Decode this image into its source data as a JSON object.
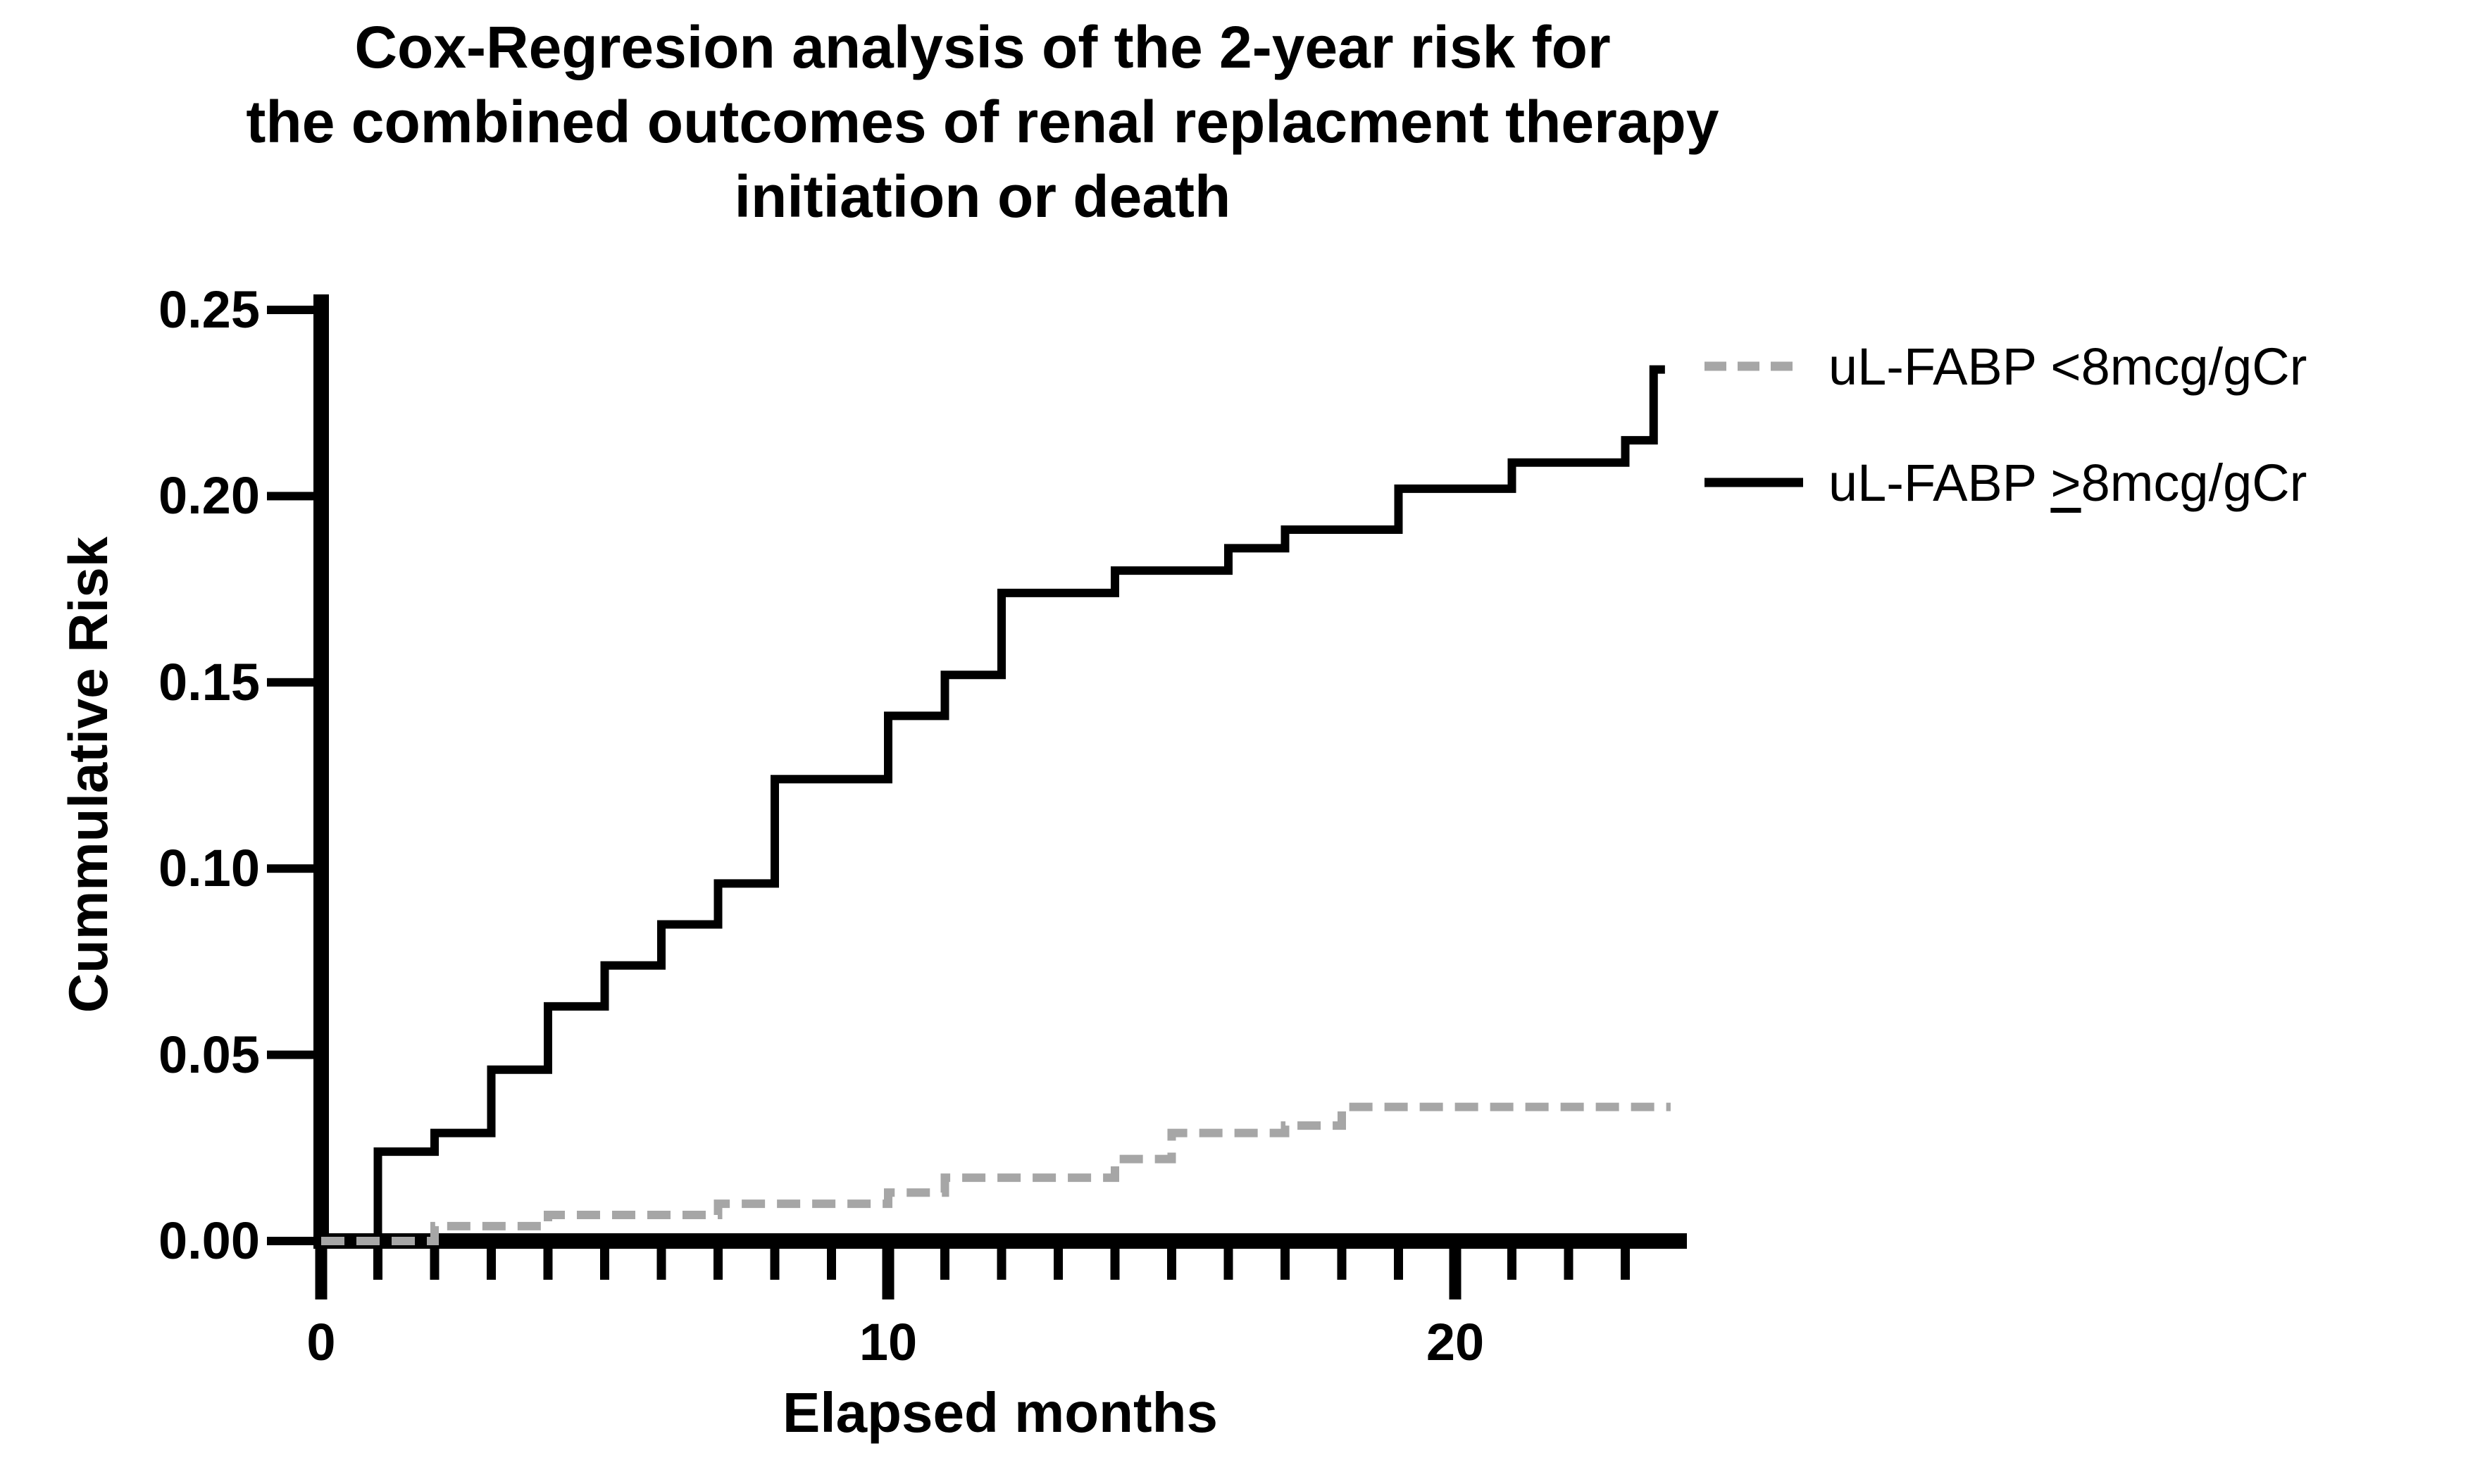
{
  "title": {
    "lines": [
      "Cox-Regresion analysis of the 2-year risk for",
      "the combined outcomes of renal replacment therapy",
      "initiation or death"
    ]
  },
  "y_axis": {
    "label": "Cummulative Risk",
    "range": [
      0,
      0.25
    ],
    "ticks": [
      {
        "v": 0.0,
        "label": "0.00"
      },
      {
        "v": 0.05,
        "label": "0.05"
      },
      {
        "v": 0.1,
        "label": "0.10"
      },
      {
        "v": 0.15,
        "label": "0.15"
      },
      {
        "v": 0.2,
        "label": "0.20"
      },
      {
        "v": 0.25,
        "label": "0.25"
      }
    ]
  },
  "x_axis": {
    "label": "Elapsed months",
    "range": [
      0,
      24
    ],
    "major_ticks": [
      {
        "v": 0,
        "label": "0"
      },
      {
        "v": 10,
        "label": "10"
      },
      {
        "v": 20,
        "label": "20"
      }
    ],
    "minor_ticks": [
      1,
      2,
      3,
      4,
      5,
      6,
      7,
      8,
      9,
      11,
      12,
      13,
      14,
      15,
      16,
      17,
      18,
      19,
      21,
      22,
      23
    ]
  },
  "legend": {
    "items": [
      {
        "label": "uL-FABP <8mcg/gCr",
        "pre": "uL-FABP ",
        "cmp": "<",
        "post": "8mcg/gCr",
        "underline_cmp": false,
        "line_style": "dashed",
        "color": "#a6a6a6"
      },
      {
        "label": "uL-FABP ≥8mcg/gCr",
        "pre": "uL-FABP ",
        "cmp": ">",
        "post": "8mcg/gCr",
        "underline_cmp": true,
        "line_style": "solid",
        "color": "#000000"
      }
    ]
  },
  "colors": {
    "axis": "#000000",
    "high_group": "#000000",
    "low_group": "#a6a6a6",
    "background": "#ffffff"
  },
  "chart_data": {
    "type": "line",
    "subtype": "step-cumulative-incidence",
    "title": "Cox-Regresion analysis of the 2-year risk for the combined outcomes of renal replacment therapy initiation or death",
    "xlabel": "Elapsed months",
    "ylabel": "Cummulative Risk",
    "xlim": [
      0,
      24.1
    ],
    "ylim": [
      0,
      0.25
    ],
    "grid": false,
    "legend_position": "upper right outside plot",
    "series": [
      {
        "name": "uL-FABP ≥8mcg/gCr",
        "color": "#000000",
        "style": "solid",
        "steps_month_risk": [
          [
            0,
            0.0
          ],
          [
            1,
            0.024
          ],
          [
            2,
            0.029
          ],
          [
            3,
            0.046
          ],
          [
            4,
            0.063
          ],
          [
            5,
            0.074
          ],
          [
            6,
            0.085
          ],
          [
            7,
            0.096
          ],
          [
            8,
            0.124
          ],
          [
            10,
            0.141
          ],
          [
            11,
            0.152
          ],
          [
            12,
            0.174
          ],
          [
            14,
            0.18
          ],
          [
            16,
            0.186
          ],
          [
            17,
            0.191
          ],
          [
            19,
            0.202
          ],
          [
            21,
            0.209
          ],
          [
            23,
            0.215
          ],
          [
            23.5,
            0.234
          ]
        ],
        "end_month": 23.7
      },
      {
        "name": "uL-FABP <8mcg/gCr",
        "color": "#a6a6a6",
        "style": "dashed",
        "steps_month_risk": [
          [
            0,
            0.0
          ],
          [
            2,
            0.004
          ],
          [
            4,
            0.007
          ],
          [
            7,
            0.01
          ],
          [
            10,
            0.013
          ],
          [
            11,
            0.017
          ],
          [
            14,
            0.022
          ],
          [
            15,
            0.029
          ],
          [
            17,
            0.031
          ],
          [
            18,
            0.036
          ]
        ],
        "end_month": 23.8
      }
    ]
  }
}
